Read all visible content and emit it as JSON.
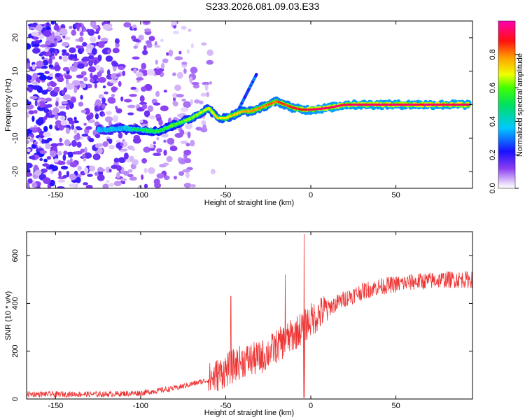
{
  "title": "S233.2026.081.09.03.E33",
  "chart_data": [
    {
      "type": "heatmap",
      "xlabel": "Height of straight line (km)",
      "ylabel": "Frequency (Hz)",
      "xlim": [
        -167,
        95
      ],
      "ylim": [
        -25,
        25
      ],
      "xticks": [
        -150,
        -100,
        -50,
        0,
        50
      ],
      "yticks": [
        -20,
        -10,
        0,
        10,
        20
      ],
      "ridge": {
        "description_points_x": [
          -120,
          -110,
          -100,
          -90,
          -80,
          -70,
          -60,
          -55,
          -50,
          -45,
          -40,
          -35,
          -30,
          -25,
          -20,
          -15,
          -10,
          -5,
          0,
          10,
          20,
          40,
          60,
          80,
          92
        ],
        "frequency_hz": [
          -7.5,
          -7,
          -7.5,
          -8,
          -6,
          -4,
          -1,
          -4,
          -4,
          -3,
          -2,
          -2,
          -1,
          0,
          1,
          0,
          -1,
          -1.5,
          -1.5,
          -1,
          0,
          0,
          0,
          0,
          0
        ]
      },
      "colorbar": {
        "label": "Normalized spectral amplitude",
        "ticks": [
          "0.0",
          "0.2",
          "0.4",
          "0.6",
          "0.8"
        ],
        "tick_values": [
          0.0,
          0.2,
          0.4,
          0.6,
          0.8
        ],
        "range": [
          0,
          1
        ]
      }
    },
    {
      "type": "line",
      "xlabel": "Height of straight line (km)",
      "ylabel": "SNR (10 * v/v)",
      "xlim": [
        -167,
        95
      ],
      "ylim": [
        0,
        700
      ],
      "xticks": [
        -150,
        -100,
        -50,
        0,
        50
      ],
      "yticks": [
        0,
        200,
        400,
        600
      ],
      "series": [
        {
          "name": "SNR",
          "color": "#ee3333",
          "trend_x": [
            -167,
            -120,
            -100,
            -80,
            -60,
            -50,
            -40,
            -30,
            -20,
            -10,
            0,
            10,
            20,
            30,
            40,
            50,
            60,
            70,
            80,
            95
          ],
          "trend_y": [
            20,
            20,
            25,
            45,
            80,
            120,
            160,
            170,
            220,
            270,
            330,
            380,
            420,
            450,
            470,
            480,
            490,
            495,
            500,
            500
          ],
          "spikes": [
            {
              "x": -47,
              "y": 430
            },
            {
              "x": -15,
              "y": 520
            },
            {
              "x": -4,
              "y": 690
            }
          ]
        }
      ]
    }
  ]
}
